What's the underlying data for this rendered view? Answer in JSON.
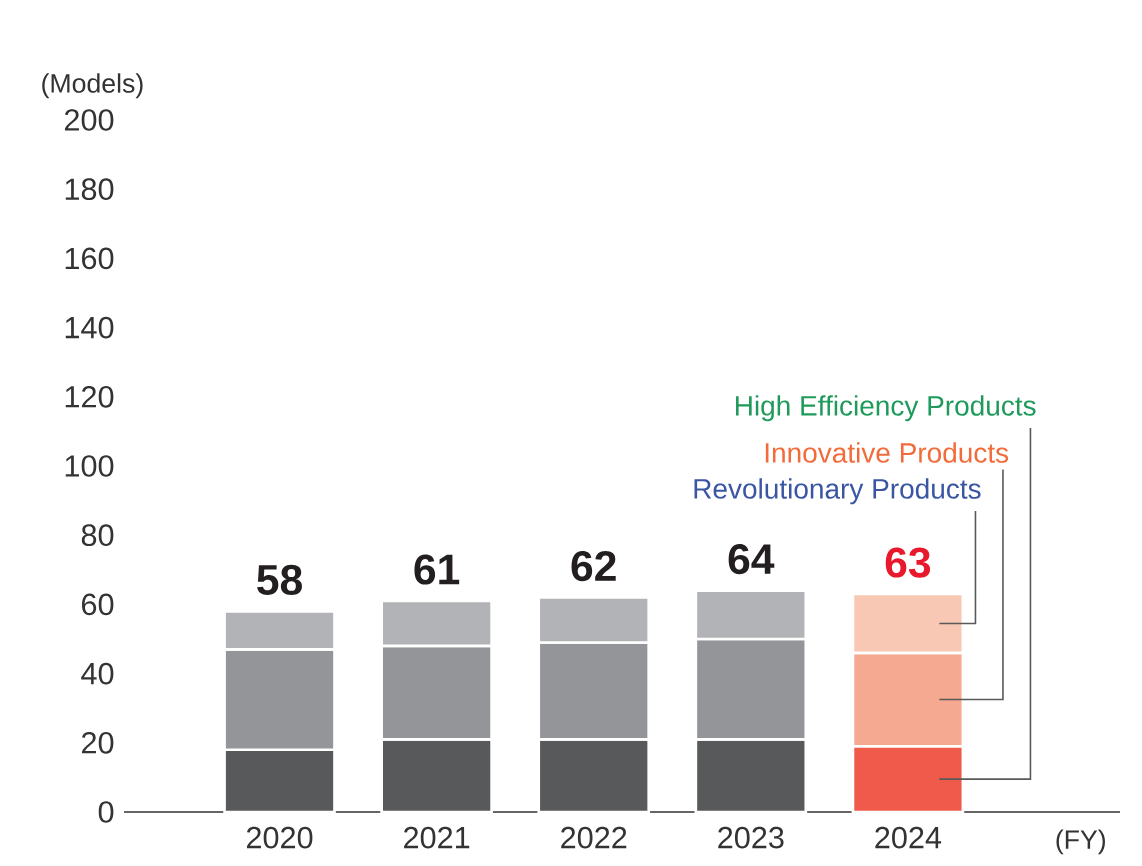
{
  "chart_data": {
    "type": "bar",
    "stacked": true,
    "ylabel": "(Models)",
    "xlabel": "(FY)",
    "categories": [
      "2020",
      "2021",
      "2022",
      "2023",
      "2024"
    ],
    "series": [
      {
        "name": "High Efficiency Products",
        "colors": [
          "#58595b",
          "#58595b",
          "#58595b",
          "#58595b",
          "#ef5a4a"
        ],
        "values": [
          18,
          21,
          21,
          21,
          19
        ]
      },
      {
        "name": "Innovative Products",
        "colors": [
          "#939598",
          "#939598",
          "#939598",
          "#939598",
          "#f5a991"
        ],
        "values": [
          29,
          27,
          28,
          29,
          27
        ]
      },
      {
        "name": "Revolutionary Products",
        "colors": [
          "#b1b3b6",
          "#b1b3b6",
          "#b1b3b6",
          "#b1b3b6",
          "#f9c8b4"
        ],
        "values": [
          11,
          13,
          13,
          14,
          17
        ]
      }
    ],
    "totals": [
      "58",
      "61",
      "62",
      "64",
      "63"
    ],
    "ylim": [
      0,
      200
    ],
    "yticks": [
      0,
      20,
      40,
      60,
      80,
      100,
      120,
      140,
      160,
      180,
      200
    ],
    "grid": false
  }
}
